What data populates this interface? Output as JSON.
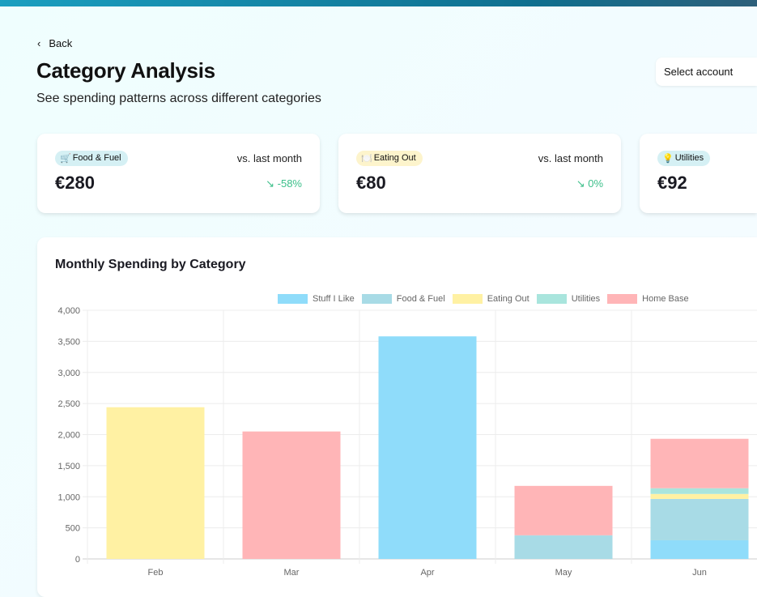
{
  "header": {
    "back_label": "Back",
    "title": "Category Analysis",
    "subtitle": "See spending patterns across different categories",
    "account_select": "Select account"
  },
  "cards": [
    {
      "icon": "🛒",
      "category": "Food & Fuel",
      "badge_color": "#d5f0f4",
      "compare_label": "vs. last month",
      "amount": "€280",
      "trend_icon": "trend-down-icon",
      "change": "↘ -58%"
    },
    {
      "icon": "🍽️",
      "category": "Eating Out",
      "badge_color": "#fdf4cc",
      "compare_label": "vs. last month",
      "amount": "€80",
      "trend_icon": "trend-down-icon",
      "change": "↘ 0%"
    },
    {
      "icon": "💡",
      "category": "Utilities",
      "badge_color": "#d5f0f4",
      "compare_label": "vs. last month",
      "amount": "€92"
    }
  ],
  "chart_data": {
    "type": "bar",
    "stacked": true,
    "title": "Monthly Spending by Category",
    "categories": [
      "Feb",
      "Mar",
      "Apr",
      "May",
      "Jun"
    ],
    "ylim": [
      0,
      4000
    ],
    "yticks": [
      "0",
      "500",
      "1,000",
      "1,500",
      "2,000",
      "2,500",
      "3,000",
      "3,500",
      "4,000"
    ],
    "grid": true,
    "legend": "top",
    "series": [
      {
        "name": "Stuff I Like",
        "color": "#8fdcfa",
        "values": [
          0,
          0,
          3580,
          0,
          300
        ]
      },
      {
        "name": "Food & Fuel",
        "color": "#a8dbe6",
        "values": [
          0,
          0,
          0,
          380,
          665
        ]
      },
      {
        "name": "Eating Out",
        "color": "#fff1a3",
        "values": [
          2440,
          0,
          0,
          0,
          80
        ]
      },
      {
        "name": "Utilities",
        "color": "#a9e5dd",
        "values": [
          0,
          0,
          0,
          0,
          92
        ]
      },
      {
        "name": "Home Base",
        "color": "#ffb5b7",
        "values": [
          0,
          2050,
          0,
          795,
          795
        ]
      }
    ]
  }
}
